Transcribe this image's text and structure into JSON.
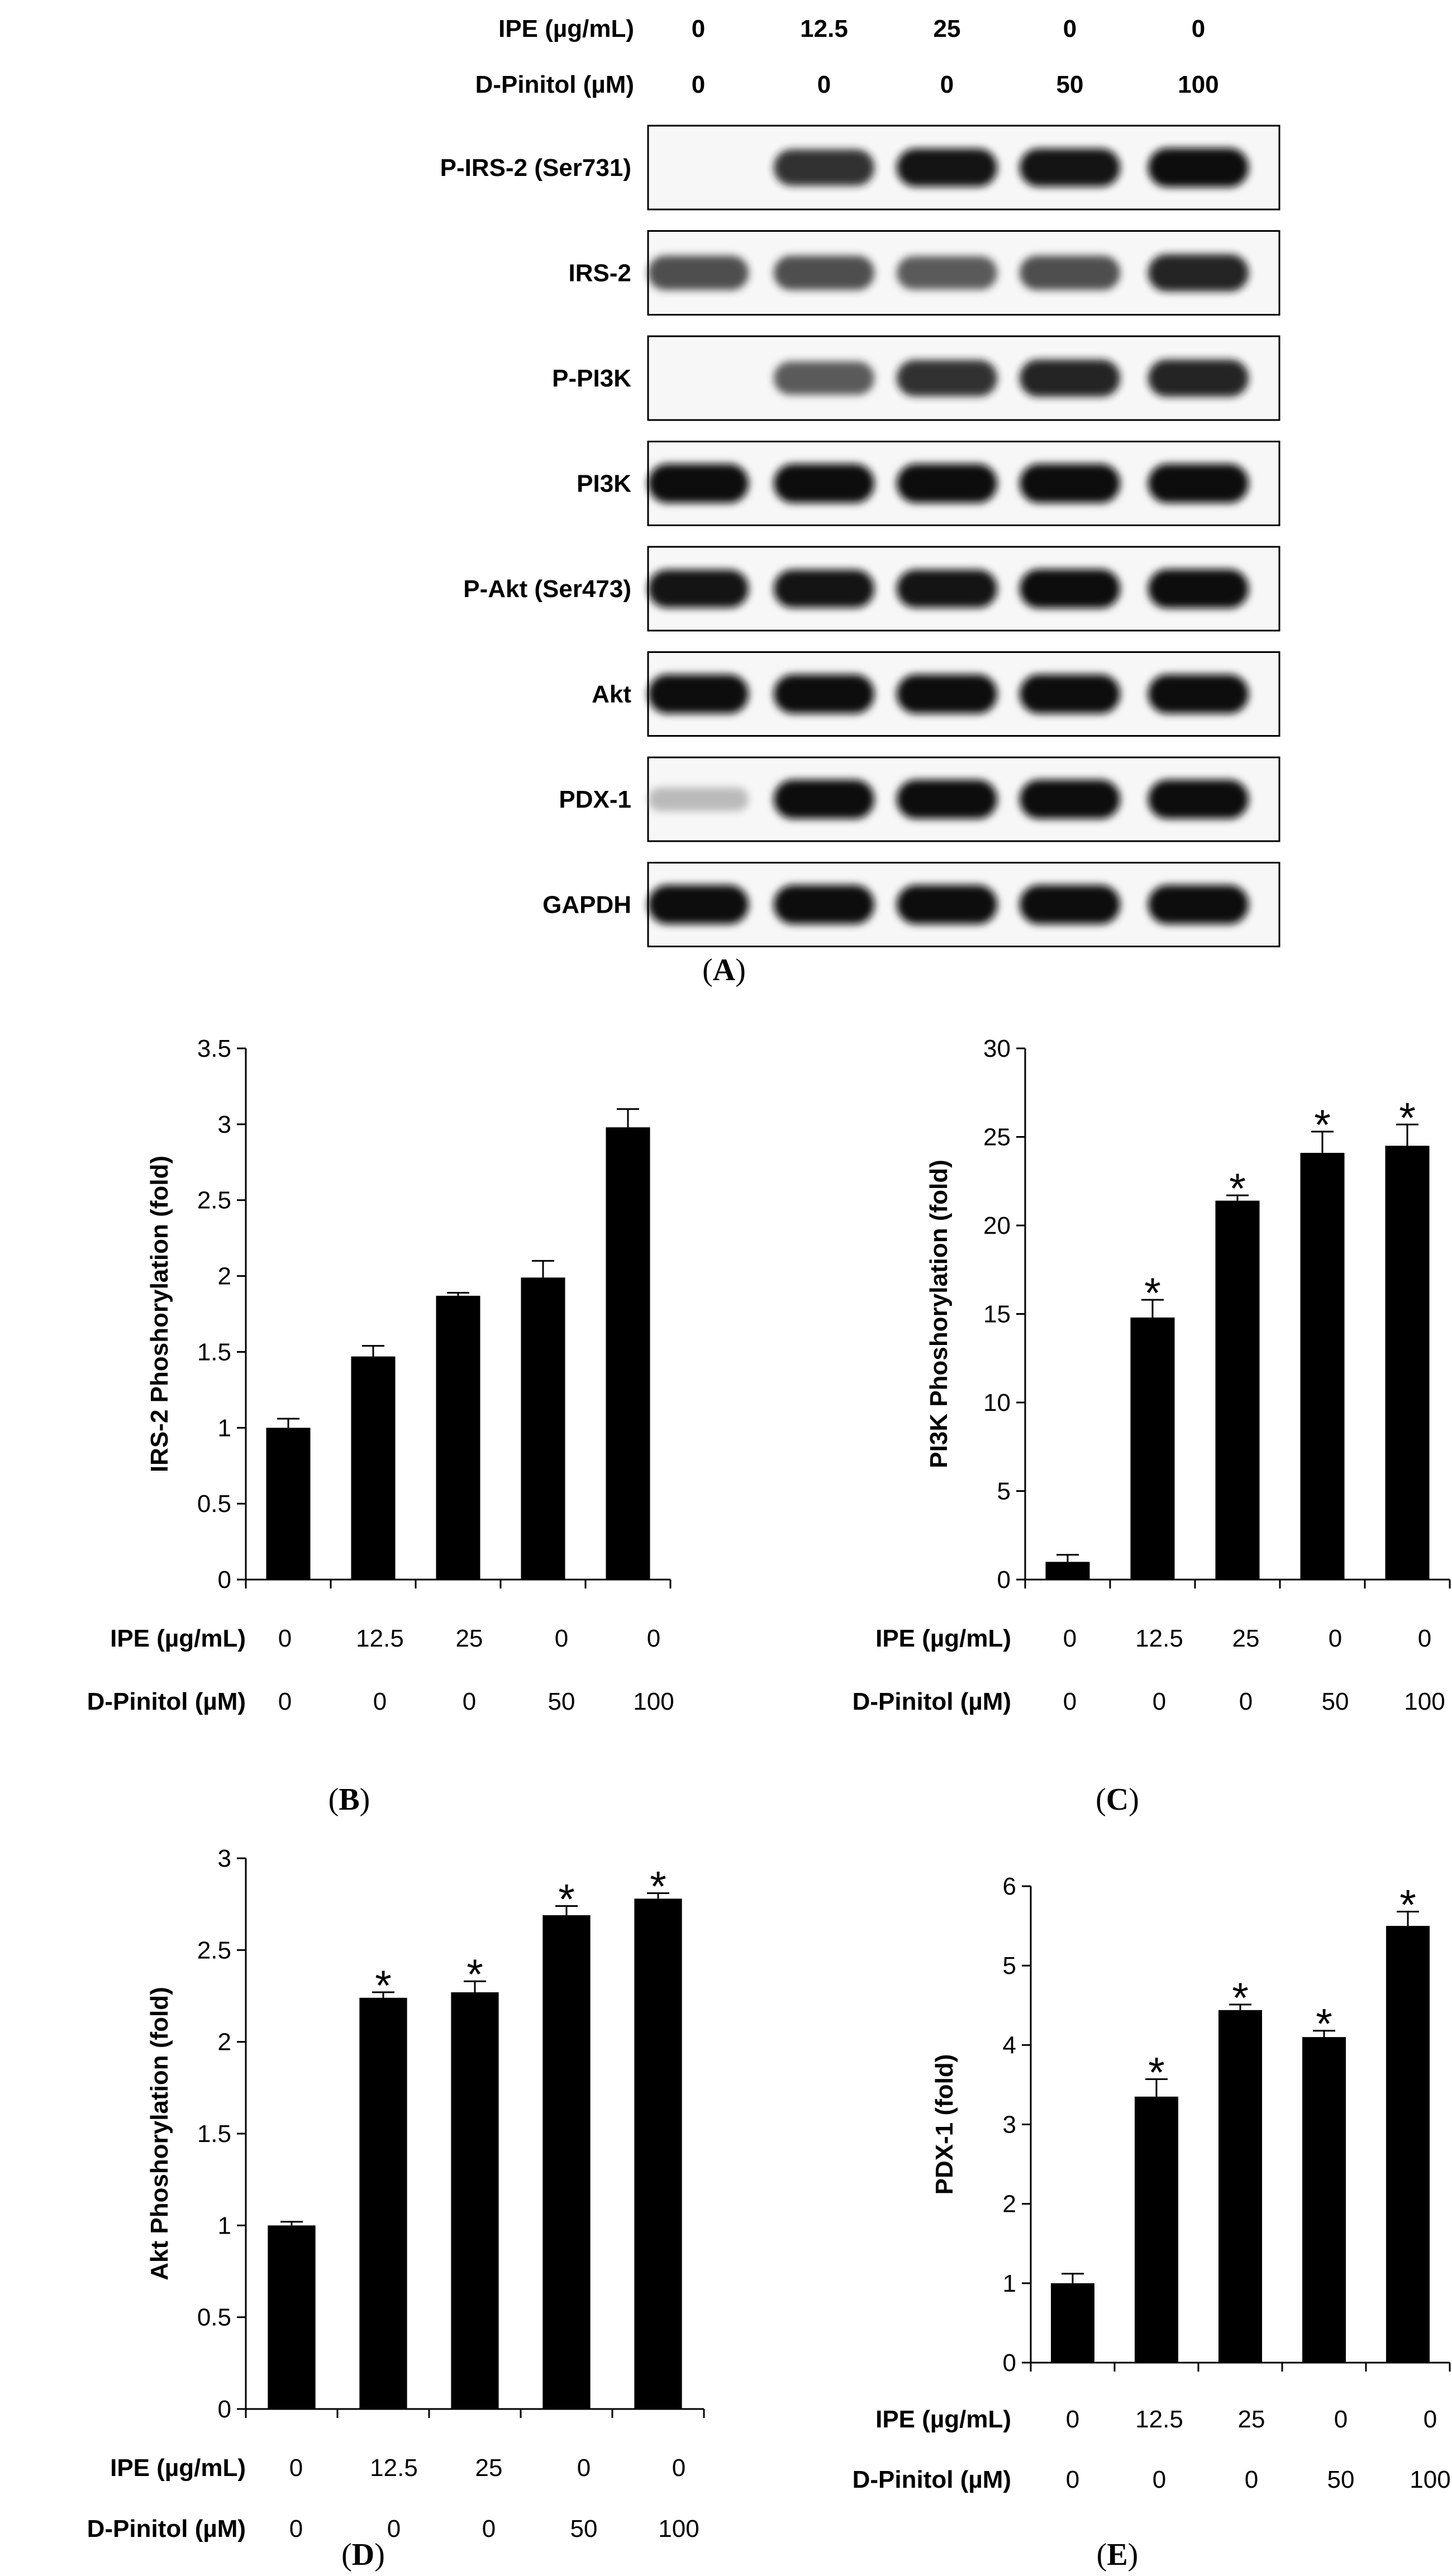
{
  "conditions": {
    "ipe_label": "IPE (µg/mL)",
    "dpinitol_label": "D-Pinitol (µM)",
    "ipe_values": [
      "0",
      "12.5",
      "25",
      "0",
      "0"
    ],
    "dpinitol_values": [
      "0",
      "0",
      "0",
      "50",
      "100"
    ]
  },
  "blot": {
    "panel_label": "A",
    "rows": [
      {
        "label": "P-IRS-2 (Ser731)",
        "intensity": [
          0.0,
          0.85,
          0.95,
          0.95,
          1.0
        ]
      },
      {
        "label": "IRS-2",
        "intensity": [
          0.75,
          0.75,
          0.7,
          0.75,
          0.9
        ]
      },
      {
        "label": "P-PI3K",
        "intensity": [
          0.0,
          0.7,
          0.85,
          0.9,
          0.9
        ]
      },
      {
        "label": "PI3K",
        "intensity": [
          1.0,
          1.0,
          1.0,
          1.0,
          1.0
        ]
      },
      {
        "label": "P-Akt (Ser473)",
        "intensity": [
          0.95,
          0.95,
          0.95,
          1.0,
          1.0
        ]
      },
      {
        "label": "Akt",
        "intensity": [
          1.0,
          1.0,
          1.0,
          1.0,
          1.0
        ]
      },
      {
        "label": "PDX-1",
        "intensity": [
          0.2,
          1.0,
          1.0,
          1.0,
          1.0
        ]
      },
      {
        "label": "GAPDH",
        "intensity": [
          1.0,
          1.0,
          1.0,
          1.0,
          1.0
        ]
      }
    ]
  },
  "chart_data": [
    {
      "panel": "B",
      "type": "bar",
      "ylabel": "IRS-2  Phoshorylation (fold)",
      "ylim": [
        0,
        3.5
      ],
      "yticks": [
        "0",
        "0.5",
        "1",
        "1.5",
        "2",
        "2.5",
        "3",
        "3.5"
      ],
      "values": [
        1.0,
        1.47,
        1.87,
        1.99,
        2.98
      ],
      "errors": [
        0.06,
        0.07,
        0.02,
        0.11,
        0.12
      ],
      "significant": [
        false,
        false,
        false,
        false,
        false
      ]
    },
    {
      "panel": "C",
      "type": "bar",
      "ylabel": "PI3K Phoshorylation (fold)",
      "ylim": [
        0,
        30
      ],
      "yticks": [
        "0",
        "5",
        "10",
        "15",
        "20",
        "25",
        "30"
      ],
      "values": [
        1.0,
        14.8,
        21.4,
        24.1,
        24.5
      ],
      "errors": [
        0.4,
        1.0,
        0.3,
        1.2,
        1.2
      ],
      "significant": [
        false,
        true,
        true,
        true,
        true
      ]
    },
    {
      "panel": "D",
      "type": "bar",
      "ylabel": "Akt Phoshorylation (fold)",
      "ylim": [
        0,
        3
      ],
      "yticks": [
        "0",
        "0.5",
        "1",
        "1.5",
        "2",
        "2.5",
        "3"
      ],
      "values": [
        1.0,
        2.24,
        2.27,
        2.69,
        2.78
      ],
      "errors": [
        0.02,
        0.03,
        0.06,
        0.05,
        0.03
      ],
      "significant": [
        false,
        true,
        true,
        true,
        true
      ]
    },
    {
      "panel": "E",
      "type": "bar",
      "ylabel": "PDX-1 (fold)",
      "ylim": [
        0,
        6
      ],
      "yticks": [
        "0",
        "1",
        "2",
        "3",
        "4",
        "5",
        "6"
      ],
      "values": [
        1.0,
        3.35,
        4.44,
        4.1,
        5.5
      ],
      "errors": [
        0.12,
        0.22,
        0.07,
        0.08,
        0.18
      ],
      "significant": [
        false,
        true,
        true,
        true,
        true
      ]
    }
  ]
}
